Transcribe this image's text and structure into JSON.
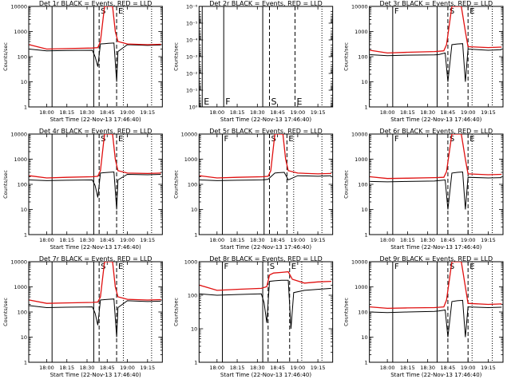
{
  "figure": {
    "x_title": "Start Time (22-Nov-13 17:46:40)",
    "y_title": "Counts/sec",
    "time_ticks": [
      "18:00",
      "18:15",
      "18:30",
      "18:45",
      "19:00",
      "19:15"
    ],
    "colors": {
      "events": "#000000",
      "lld": "#e01010",
      "axes": "#000000"
    }
  },
  "chart_data": [
    {
      "type": "line",
      "title": "Det 1r BLACK = Events, RED = LLD",
      "yscale": "log",
      "ytick_labels": [
        "1",
        "10",
        "100",
        "1000",
        "10000"
      ],
      "ylim": [
        1,
        10000
      ],
      "xlim": [
        "17:46:40",
        "19:26:00"
      ],
      "event_lines": [
        {
          "time": "18:04",
          "style": "solid",
          "label": ""
        },
        {
          "time": "18:35",
          "style": "solid",
          "label": ""
        },
        {
          "time": "18:39",
          "style": "dashed",
          "label": "S"
        },
        {
          "time": "18:52",
          "style": "dashed",
          "label": "E"
        },
        {
          "time": "18:57",
          "style": "dotted",
          "label": ""
        },
        {
          "time": "19:18",
          "style": "dotted",
          "label": ""
        }
      ],
      "series": [
        {
          "name": "Events",
          "color": "#000000",
          "x": [
            "17:47",
            "18:00",
            "18:15",
            "18:34",
            "18:36",
            "18:38",
            "18:40",
            "18:43",
            "18:46",
            "18:50",
            "18:52",
            "18:53",
            "19:00",
            "19:15",
            "19:25"
          ],
          "y": [
            200,
            170,
            175,
            180,
            100,
            40,
            320,
            330,
            340,
            350,
            10,
            160,
            300,
            280,
            290
          ]
        },
        {
          "name": "LLD",
          "color": "#e01010",
          "x": [
            "17:47",
            "18:00",
            "18:15",
            "18:34",
            "18:38",
            "18:40",
            "18:43",
            "18:46",
            "18:49",
            "18:51",
            "18:53",
            "19:00",
            "19:15",
            "19:25"
          ],
          "y": [
            300,
            200,
            210,
            220,
            230,
            400,
            10000,
            10000,
            10000,
            1000,
            400,
            320,
            300,
            310
          ]
        }
      ]
    },
    {
      "type": "line",
      "title": "Det 2r BLACK = Events, RED = LLD",
      "yscale": "log",
      "ytick_labels": [
        "10⁰",
        "10⁻¹",
        "10⁻²",
        "10⁻³",
        "10⁻⁴",
        "10⁻⁵",
        "10⁻⁶"
      ],
      "ylim": [
        1,
        1e-06
      ],
      "xlim": [
        "17:46:40",
        "19:26:00"
      ],
      "event_lines": [
        {
          "time": "17:49",
          "style": "solid",
          "label": "E"
        },
        {
          "time": "18:05",
          "style": "solid",
          "label": "F"
        },
        {
          "time": "18:34",
          "style": "solid",
          "label": ""
        },
        {
          "time": "18:39",
          "style": "dashed",
          "label": "S"
        },
        {
          "time": "18:58",
          "style": "dashed",
          "label": "E"
        },
        {
          "time": "19:18",
          "style": "dotted",
          "label": ""
        }
      ],
      "series": []
    },
    {
      "type": "line",
      "title": "Det 3r BLACK = Events, RED = LLD",
      "yscale": "log",
      "ytick_labels": [
        "1",
        "10",
        "100",
        "1000",
        "10000"
      ],
      "ylim": [
        1,
        10000
      ],
      "xlim": [
        "17:46:40",
        "19:26:00"
      ],
      "event_lines": [
        {
          "time": "18:04",
          "style": "solid",
          "label": "F"
        },
        {
          "time": "18:37",
          "style": "solid",
          "label": ""
        },
        {
          "time": "18:45",
          "style": "dashed",
          "label": "S"
        },
        {
          "time": "19:00",
          "style": "dashed",
          "label": "E"
        },
        {
          "time": "19:03",
          "style": "dotted",
          "label": ""
        },
        {
          "time": "19:18",
          "style": "dotted",
          "label": ""
        }
      ],
      "series": [
        {
          "name": "Events",
          "color": "#000000",
          "x": [
            "17:47",
            "18:00",
            "18:15",
            "18:35",
            "18:38",
            "18:43",
            "18:45",
            "18:48",
            "18:52",
            "18:56",
            "18:58",
            "19:00",
            "19:15",
            "19:25"
          ],
          "y": [
            120,
            110,
            115,
            118,
            120,
            140,
            10,
            300,
            320,
            330,
            10,
            200,
            180,
            190
          ]
        },
        {
          "name": "LLD",
          "color": "#e01010",
          "x": [
            "17:47",
            "18:00",
            "18:15",
            "18:35",
            "18:42",
            "18:44",
            "18:48",
            "18:52",
            "18:55",
            "18:58",
            "19:00",
            "19:15",
            "19:25"
          ],
          "y": [
            180,
            140,
            150,
            160,
            170,
            300,
            10000,
            10000,
            10000,
            1000,
            250,
            230,
            240
          ]
        }
      ]
    },
    {
      "type": "line",
      "title": "Det 4r BLACK = Events, RED = LLD",
      "yscale": "log",
      "ytick_labels": [
        "1",
        "10",
        "100",
        "1000",
        "10000"
      ],
      "ylim": [
        1,
        10000
      ],
      "xlim": [
        "17:46:40",
        "19:26:00"
      ],
      "event_lines": [
        {
          "time": "18:04",
          "style": "solid",
          "label": ""
        },
        {
          "time": "18:35",
          "style": "solid",
          "label": ""
        },
        {
          "time": "18:39",
          "style": "dashed",
          "label": "S"
        },
        {
          "time": "18:52",
          "style": "dashed",
          "label": "E"
        },
        {
          "time": "18:57",
          "style": "dotted",
          "label": ""
        },
        {
          "time": "19:18",
          "style": "dotted",
          "label": ""
        }
      ],
      "series": [
        {
          "name": "Events",
          "color": "#000000",
          "x": [
            "17:47",
            "18:00",
            "18:15",
            "18:34",
            "18:36",
            "18:38",
            "18:40",
            "18:43",
            "18:46",
            "18:50",
            "18:52",
            "18:53",
            "19:00",
            "19:15",
            "19:25"
          ],
          "y": [
            150,
            140,
            145,
            150,
            90,
            30,
            280,
            290,
            300,
            310,
            10,
            150,
            250,
            240,
            250
          ]
        },
        {
          "name": "LLD",
          "color": "#e01010",
          "x": [
            "17:47",
            "18:00",
            "18:15",
            "18:34",
            "18:38",
            "18:40",
            "18:43",
            "18:46",
            "18:49",
            "18:51",
            "18:53",
            "19:00",
            "19:15",
            "19:25"
          ],
          "y": [
            220,
            180,
            190,
            200,
            210,
            350,
            10000,
            10000,
            10000,
            1000,
            350,
            280,
            270,
            280
          ]
        }
      ]
    },
    {
      "type": "line",
      "title": "Det 5r BLACK = Events, RED = LLD",
      "yscale": "log",
      "ytick_labels": [
        "1",
        "10",
        "100",
        "1000",
        "10000"
      ],
      "ylim": [
        1,
        10000
      ],
      "xlim": [
        "17:46:40",
        "19:26:00"
      ],
      "event_lines": [
        {
          "time": "18:04",
          "style": "solid",
          "label": "F"
        },
        {
          "time": "18:35",
          "style": "solid",
          "label": ""
        },
        {
          "time": "18:39",
          "style": "dashed",
          "label": "S"
        },
        {
          "time": "18:52",
          "style": "dashed",
          "label": "E"
        },
        {
          "time": "18:57",
          "style": "dotted",
          "label": ""
        },
        {
          "time": "19:18",
          "style": "dotted",
          "label": ""
        }
      ],
      "series": [
        {
          "name": "Events",
          "color": "#000000",
          "x": [
            "17:47",
            "18:00",
            "18:15",
            "18:34",
            "18:38",
            "18:43",
            "18:46",
            "18:50",
            "18:53",
            "19:00",
            "19:15",
            "19:25"
          ],
          "y": [
            150,
            140,
            145,
            150,
            160,
            280,
            290,
            300,
            150,
            220,
            210,
            220
          ]
        },
        {
          "name": "LLD",
          "color": "#e01010",
          "x": [
            "17:47",
            "18:00",
            "18:15",
            "18:34",
            "18:38",
            "18:40",
            "18:43",
            "18:46",
            "18:49",
            "18:51",
            "18:53",
            "19:00",
            "19:15",
            "19:25"
          ],
          "y": [
            220,
            180,
            190,
            200,
            210,
            350,
            10000,
            10000,
            10000,
            1000,
            350,
            280,
            260,
            270
          ]
        }
      ]
    },
    {
      "type": "line",
      "title": "Det 6r BLACK = Events, RED = LLD",
      "yscale": "log",
      "ytick_labels": [
        "1",
        "10",
        "100",
        "1000",
        "10000"
      ],
      "ylim": [
        1,
        10000
      ],
      "xlim": [
        "17:46:40",
        "19:26:00"
      ],
      "event_lines": [
        {
          "time": "18:04",
          "style": "solid",
          "label": "F"
        },
        {
          "time": "18:37",
          "style": "solid",
          "label": ""
        },
        {
          "time": "18:45",
          "style": "dashed",
          "label": "S"
        },
        {
          "time": "19:00",
          "style": "dashed",
          "label": "E"
        },
        {
          "time": "19:03",
          "style": "dotted",
          "label": ""
        },
        {
          "time": "19:18",
          "style": "dotted",
          "label": ""
        }
      ],
      "series": [
        {
          "name": "Events",
          "color": "#000000",
          "x": [
            "17:47",
            "18:00",
            "18:15",
            "18:35",
            "18:38",
            "18:43",
            "18:45",
            "18:48",
            "18:52",
            "18:56",
            "18:58",
            "19:00",
            "19:15",
            "19:25"
          ],
          "y": [
            130,
            125,
            130,
            135,
            140,
            150,
            10,
            280,
            300,
            310,
            10,
            190,
            180,
            185
          ]
        },
        {
          "name": "LLD",
          "color": "#e01010",
          "x": [
            "17:47",
            "18:00",
            "18:15",
            "18:35",
            "18:42",
            "18:44",
            "18:48",
            "18:52",
            "18:55",
            "18:58",
            "19:00",
            "19:15",
            "19:25"
          ],
          "y": [
            200,
            170,
            175,
            185,
            190,
            320,
            10000,
            10000,
            10000,
            1000,
            260,
            240,
            250
          ]
        }
      ]
    },
    {
      "type": "line",
      "title": "Det 7r BLACK = Events, RED = LLD",
      "yscale": "log",
      "ytick_labels": [
        "1",
        "10",
        "100",
        "1000",
        "10000"
      ],
      "ylim": [
        1,
        10000
      ],
      "xlim": [
        "17:46:40",
        "19:26:00"
      ],
      "event_lines": [
        {
          "time": "18:04",
          "style": "solid",
          "label": ""
        },
        {
          "time": "18:35",
          "style": "solid",
          "label": ""
        },
        {
          "time": "18:39",
          "style": "dashed",
          "label": "S"
        },
        {
          "time": "18:52",
          "style": "dashed",
          "label": "E"
        },
        {
          "time": "18:57",
          "style": "dotted",
          "label": ""
        },
        {
          "time": "19:18",
          "style": "dotted",
          "label": ""
        }
      ],
      "series": [
        {
          "name": "Events",
          "color": "#000000",
          "x": [
            "17:47",
            "18:00",
            "18:15",
            "18:34",
            "18:36",
            "18:38",
            "18:40",
            "18:43",
            "18:46",
            "18:50",
            "18:52",
            "18:53",
            "19:00",
            "19:15",
            "19:25"
          ],
          "y": [
            180,
            150,
            155,
            160,
            90,
            30,
            300,
            310,
            320,
            330,
            10,
            150,
            280,
            260,
            270
          ]
        },
        {
          "name": "LLD",
          "color": "#e01010",
          "x": [
            "17:47",
            "18:00",
            "18:15",
            "18:34",
            "18:38",
            "18:40",
            "18:43",
            "18:46",
            "18:49",
            "18:51",
            "18:53",
            "19:00",
            "19:15",
            "19:25"
          ],
          "y": [
            300,
            220,
            230,
            240,
            250,
            400,
            10000,
            10000,
            10000,
            1000,
            400,
            320,
            300,
            310
          ]
        }
      ]
    },
    {
      "type": "line",
      "title": "Det 8r BLACK = Events, RED = LLD",
      "yscale": "log",
      "ytick_labels": [
        "1",
        "10",
        "100",
        "1000"
      ],
      "ylim": [
        1,
        1000
      ],
      "xlim": [
        "17:46:40",
        "19:26:00"
      ],
      "event_lines": [
        {
          "time": "18:04",
          "style": "solid",
          "label": "F"
        },
        {
          "time": "18:34",
          "style": "solid",
          "label": ""
        },
        {
          "time": "18:38",
          "style": "dashed",
          "label": "S"
        },
        {
          "time": "18:54",
          "style": "dashed",
          "label": "E"
        },
        {
          "time": "19:03",
          "style": "dotted",
          "label": ""
        },
        {
          "time": "19:18",
          "style": "dotted",
          "label": ""
        }
      ],
      "series": [
        {
          "name": "Events",
          "color": "#000000",
          "x": [
            "17:47",
            "18:00",
            "18:15",
            "18:33",
            "18:35",
            "18:37",
            "18:39",
            "18:43",
            "18:48",
            "18:53",
            "18:55",
            "18:57",
            "19:05",
            "19:15",
            "19:25"
          ],
          "y": [
            110,
            100,
            105,
            110,
            60,
            15,
            260,
            270,
            280,
            280,
            10,
            120,
            140,
            150,
            160
          ]
        },
        {
          "name": "LLD",
          "color": "#e01010",
          "x": [
            "17:47",
            "18:00",
            "18:15",
            "18:33",
            "18:37",
            "18:39",
            "18:42",
            "18:48",
            "18:53",
            "18:56",
            "19:05",
            "19:15",
            "19:25"
          ],
          "y": [
            200,
            140,
            150,
            160,
            180,
            400,
            460,
            480,
            500,
            300,
            230,
            250,
            260
          ]
        }
      ]
    },
    {
      "type": "line",
      "title": "Det 9r BLACK = Events, RED = LLD",
      "yscale": "log",
      "ytick_labels": [
        "1",
        "10",
        "100",
        "1000",
        "10000"
      ],
      "ylim": [
        1,
        10000
      ],
      "xlim": [
        "17:46:40",
        "19:26:00"
      ],
      "event_lines": [
        {
          "time": "18:04",
          "style": "solid",
          "label": "F"
        },
        {
          "time": "18:37",
          "style": "solid",
          "label": ""
        },
        {
          "time": "18:45",
          "style": "dashed",
          "label": "S"
        },
        {
          "time": "19:00",
          "style": "dashed",
          "label": "E"
        },
        {
          "time": "19:03",
          "style": "dotted",
          "label": ""
        },
        {
          "time": "19:18",
          "style": "dotted",
          "label": ""
        }
      ],
      "series": [
        {
          "name": "Events",
          "color": "#000000",
          "x": [
            "17:47",
            "18:00",
            "18:15",
            "18:35",
            "18:38",
            "18:43",
            "18:45",
            "18:48",
            "18:52",
            "18:56",
            "18:58",
            "19:00",
            "19:15",
            "19:25"
          ],
          "y": [
            100,
            95,
            100,
            105,
            110,
            120,
            10,
            260,
            280,
            290,
            10,
            160,
            150,
            155
          ]
        },
        {
          "name": "LLD",
          "color": "#e01010",
          "x": [
            "17:47",
            "18:00",
            "18:15",
            "18:35",
            "18:42",
            "18:44",
            "18:48",
            "18:52",
            "18:55",
            "18:58",
            "19:00",
            "19:15",
            "19:25"
          ],
          "y": [
            160,
            140,
            145,
            150,
            160,
            300,
            10000,
            10000,
            10000,
            1000,
            220,
            200,
            210
          ]
        }
      ]
    }
  ]
}
